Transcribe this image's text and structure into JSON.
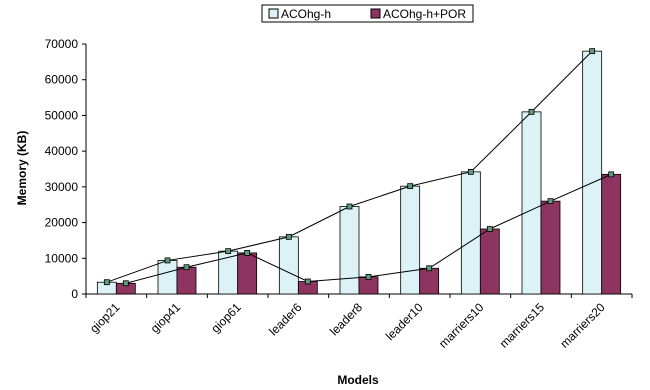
{
  "chart_data": {
    "type": "bar",
    "title": "",
    "xlabel": "Models",
    "ylabel": "Memory (KB)",
    "categories": [
      "giop21",
      "giop41",
      "giop61",
      "leader6",
      "leader8",
      "leader10",
      "marriers10",
      "marriers15",
      "marriers20"
    ],
    "series": [
      {
        "name": "ACOhg-h",
        "values": [
          3300,
          9400,
          12000,
          16000,
          24500,
          30200,
          34200,
          51000,
          68000
        ],
        "color": "#DDF2F7"
      },
      {
        "name": "ACOhg-h+POR",
        "values": [
          3000,
          7500,
          11500,
          3500,
          4800,
          7200,
          18200,
          26000,
          33500
        ],
        "color": "#8E3460"
      }
    ],
    "ylim": [
      0,
      70000
    ],
    "yticks": [
      "0",
      "10000",
      "20000",
      "30000",
      "40000",
      "50000",
      "60000",
      "70000"
    ],
    "grid": false,
    "legend_position": "top",
    "overlay_lines": true
  }
}
